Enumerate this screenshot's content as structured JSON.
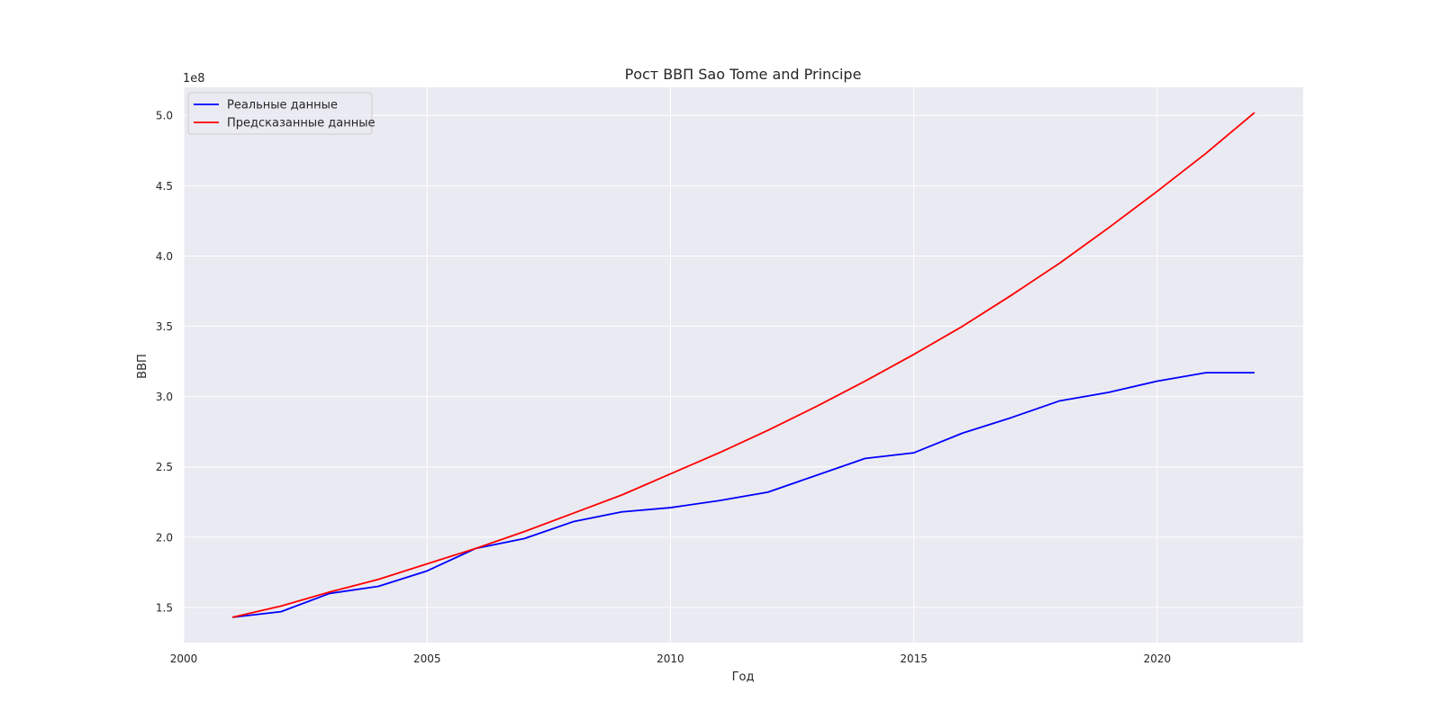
{
  "chart_data": {
    "type": "line",
    "title": "Рост ВВП Sao Tome and Principe",
    "xlabel": "Год",
    "ylabel": "ВВП",
    "y_offset_label": "1e8",
    "xlim": [
      2000,
      2023
    ],
    "ylim": [
      1.25,
      5.2
    ],
    "x_ticks": [
      2000,
      2005,
      2010,
      2015,
      2020
    ],
    "y_ticks": [
      1.5,
      2.0,
      2.5,
      3.0,
      3.5,
      4.0,
      4.5,
      5.0
    ],
    "y_tick_labels": [
      "1.5",
      "2.0",
      "2.5",
      "3.0",
      "3.5",
      "4.0",
      "4.5",
      "5.0"
    ],
    "grid": true,
    "legend_position": "top-left",
    "x": [
      2001,
      2002,
      2003,
      2004,
      2005,
      2006,
      2007,
      2008,
      2009,
      2010,
      2011,
      2012,
      2013,
      2014,
      2015,
      2016,
      2017,
      2018,
      2019,
      2020,
      2021,
      2022
    ],
    "series": [
      {
        "name": "Реальные данные",
        "color": "#0000ff",
        "values": [
          1.43,
          1.47,
          1.6,
          1.65,
          1.76,
          1.92,
          1.99,
          2.11,
          2.18,
          2.21,
          2.26,
          2.32,
          2.44,
          2.56,
          2.6,
          2.74,
          2.85,
          2.97,
          3.03,
          3.11,
          3.17,
          3.17
        ]
      },
      {
        "name": "Предсказанные данные",
        "color": "#ff0000",
        "values": [
          1.43,
          1.51,
          1.61,
          1.7,
          1.81,
          1.92,
          2.04,
          2.17,
          2.3,
          2.45,
          2.6,
          2.76,
          2.93,
          3.11,
          3.3,
          3.5,
          3.72,
          3.95,
          4.2,
          4.46,
          4.73,
          5.02
        ]
      }
    ]
  }
}
